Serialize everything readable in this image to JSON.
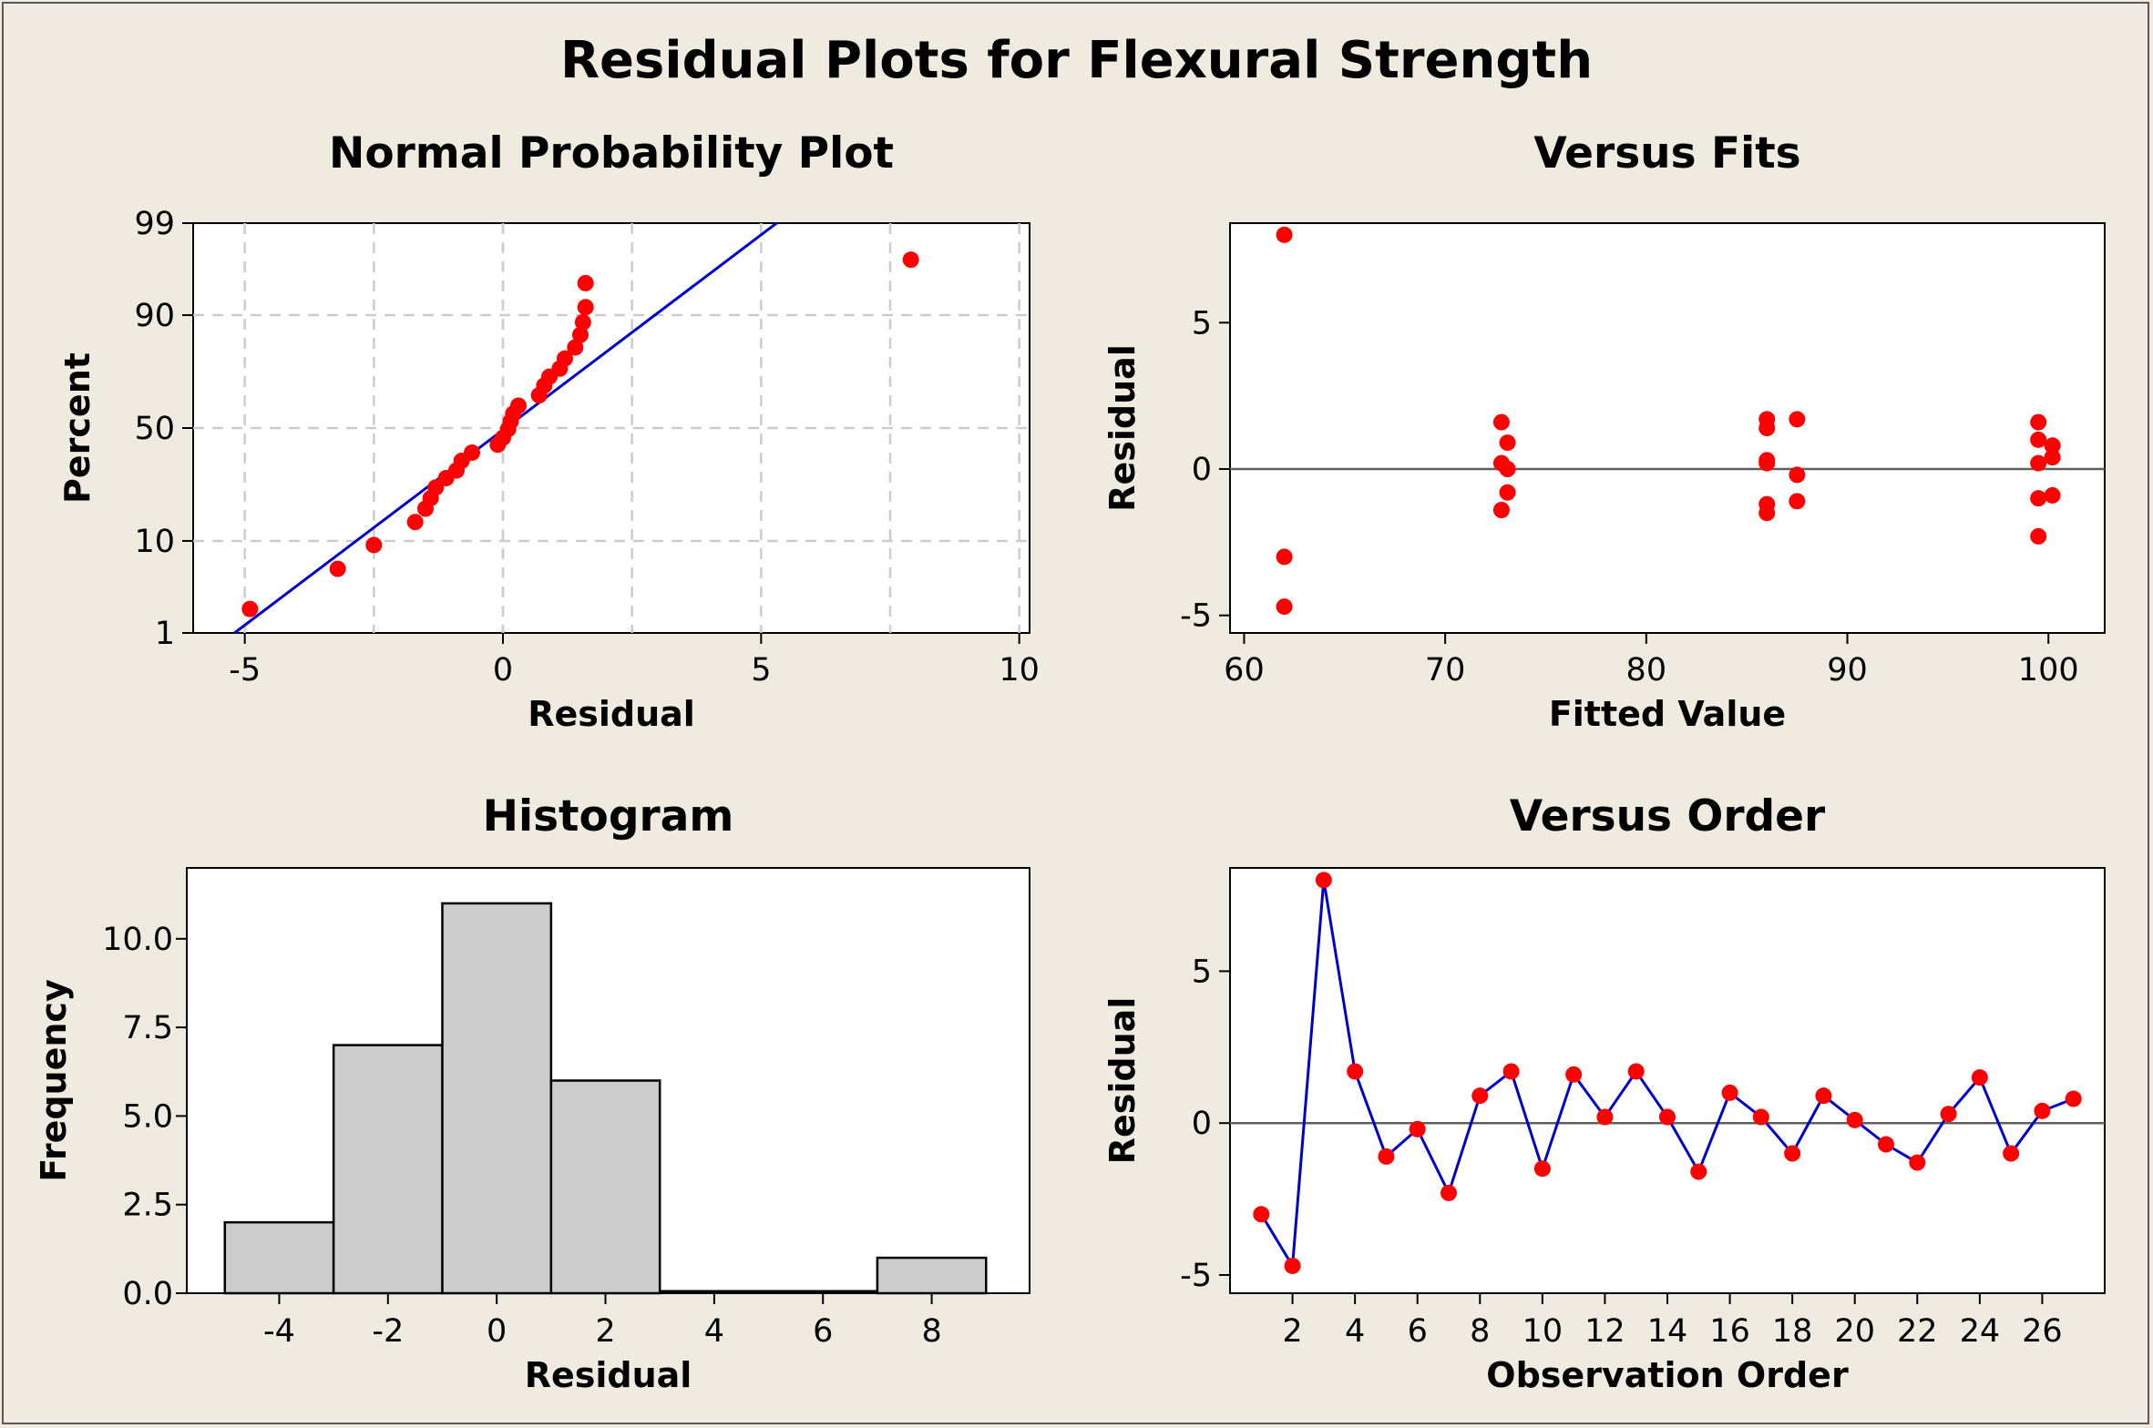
{
  "title": "Residual Plots for Flexural Strength",
  "colors": {
    "background": "#f0ebe0",
    "point": "#ff0000",
    "line": "#0000cc",
    "grid": "#cccccc",
    "bar": "#cccccc",
    "zero_line": "#606060"
  },
  "chart_data": [
    {
      "type": "scatter",
      "title": "Normal Probability Plot",
      "xlabel": "Residual",
      "ylabel": "Percent",
      "xlim": [
        -6,
        10.2
      ],
      "x_ticks": [
        -5,
        0,
        5,
        10
      ],
      "x_tick_labels": [
        "-5",
        "0",
        "5",
        "10"
      ],
      "y_ticks": [
        1,
        10,
        50,
        90,
        99
      ],
      "y_tick_labels": [
        "1",
        "10",
        "50",
        "90",
        "99"
      ],
      "grid": true,
      "points": [
        [
          -4.9,
          2.0
        ],
        [
          -3.2,
          5.5
        ],
        [
          -2.5,
          9.2
        ],
        [
          -1.7,
          14.3
        ],
        [
          -1.5,
          18.0
        ],
        [
          -1.4,
          21.3
        ],
        [
          -1.3,
          25.0
        ],
        [
          -1.1,
          28.5
        ],
        [
          -0.9,
          31.5
        ],
        [
          -0.8,
          35.5
        ],
        [
          -0.6,
          39.0
        ],
        [
          -0.1,
          42.5
        ],
        [
          0.0,
          45.6
        ],
        [
          0.1,
          49.5
        ],
        [
          0.15,
          53.0
        ],
        [
          0.2,
          56.5
        ],
        [
          0.3,
          60.0
        ],
        [
          0.7,
          64.5
        ],
        [
          0.8,
          68.5
        ],
        [
          0.9,
          72.0
        ],
        [
          1.1,
          75.0
        ],
        [
          1.2,
          78.5
        ],
        [
          1.4,
          82.0
        ],
        [
          1.5,
          85.5
        ],
        [
          1.55,
          88.5
        ],
        [
          1.6,
          91.5
        ],
        [
          1.6,
          95.0
        ],
        [
          7.9,
          97.2
        ]
      ],
      "fit_line": {
        "x": [
          -5.2,
          5.3
        ],
        "percent": [
          1,
          99
        ]
      }
    },
    {
      "type": "scatter",
      "title": "Versus Fits",
      "xlabel": "Fitted Value",
      "ylabel": "Residual",
      "xlim": [
        59.3,
        102.8
      ],
      "ylim": [
        -5.6,
        8.4
      ],
      "x_ticks": [
        60,
        70,
        80,
        90,
        100
      ],
      "x_tick_labels": [
        "60",
        "70",
        "80",
        "90",
        "100"
      ],
      "y_ticks": [
        -5,
        0,
        5
      ],
      "y_tick_labels": [
        "-5",
        "0",
        "5"
      ],
      "reference_line": 0,
      "points": [
        [
          62.0,
          8.0
        ],
        [
          62.0,
          -3.0
        ],
        [
          62.0,
          -4.7
        ],
        [
          72.8,
          1.6
        ],
        [
          72.8,
          0.2
        ],
        [
          72.8,
          -1.4
        ],
        [
          73.1,
          0.9
        ],
        [
          73.1,
          -0.8
        ],
        [
          73.1,
          0.0
        ],
        [
          86.0,
          1.7
        ],
        [
          86.0,
          1.4
        ],
        [
          86.0,
          0.3
        ],
        [
          86.0,
          0.2
        ],
        [
          86.0,
          -1.2
        ],
        [
          86.0,
          -1.5
        ],
        [
          87.5,
          1.7
        ],
        [
          87.5,
          -0.2
        ],
        [
          87.5,
          -1.1
        ],
        [
          99.5,
          1.6
        ],
        [
          99.5,
          1.0
        ],
        [
          99.5,
          0.2
        ],
        [
          99.5,
          -1.0
        ],
        [
          99.5,
          -2.3
        ],
        [
          100.2,
          0.8
        ],
        [
          100.2,
          0.4
        ],
        [
          100.2,
          -0.9
        ]
      ]
    },
    {
      "type": "bar",
      "title": "Histogram",
      "xlabel": "Residual",
      "ylabel": "Frequency",
      "xlim": [
        -5.7,
        9.8
      ],
      "ylim": [
        0,
        12
      ],
      "x_ticks": [
        -4,
        -2,
        0,
        2,
        4,
        6,
        8
      ],
      "x_tick_labels": [
        "-4",
        "-2",
        "0",
        "2",
        "4",
        "6",
        "8"
      ],
      "y_ticks": [
        0,
        2.5,
        5,
        7.5,
        10
      ],
      "y_tick_labels": [
        "0.0",
        "2.5",
        "5.0",
        "7.5",
        "10.0"
      ],
      "bins": [
        {
          "from": -5,
          "to": -3,
          "count": 2
        },
        {
          "from": -3,
          "to": -1,
          "count": 7
        },
        {
          "from": -1,
          "to": 1,
          "count": 11
        },
        {
          "from": 1,
          "to": 3,
          "count": 6
        },
        {
          "from": 3,
          "to": 5,
          "count": 0
        },
        {
          "from": 5,
          "to": 7,
          "count": 0
        },
        {
          "from": 7,
          "to": 9,
          "count": 1
        }
      ]
    },
    {
      "type": "line",
      "title": "Versus Order",
      "xlabel": "Observation Order",
      "ylabel": "Residual",
      "xlim": [
        0,
        28
      ],
      "ylim": [
        -5.6,
        8.4
      ],
      "x_ticks": [
        2,
        4,
        6,
        8,
        10,
        12,
        14,
        16,
        18,
        20,
        22,
        24,
        26
      ],
      "x_tick_labels": [
        "2",
        "4",
        "6",
        "8",
        "10",
        "12",
        "14",
        "16",
        "18",
        "20",
        "22",
        "24",
        "26"
      ],
      "y_ticks": [
        -5,
        0,
        5
      ],
      "y_tick_labels": [
        "-5",
        "0",
        "5"
      ],
      "reference_line": 0,
      "x": [
        1,
        2,
        3,
        4,
        5,
        6,
        7,
        8,
        9,
        10,
        11,
        12,
        13,
        14,
        15,
        16,
        17,
        18,
        19,
        20,
        21,
        22,
        23,
        24,
        25,
        26,
        27
      ],
      "values": [
        -3.0,
        -4.7,
        8.0,
        1.7,
        -1.1,
        -0.2,
        -2.3,
        0.9,
        1.7,
        -1.5,
        1.6,
        0.2,
        1.7,
        0.2,
        -1.6,
        1.0,
        0.2,
        -1.0,
        0.9,
        0.1,
        -0.7,
        -1.3,
        0.3,
        1.5,
        -1.0,
        0.4,
        0.8
      ]
    }
  ]
}
